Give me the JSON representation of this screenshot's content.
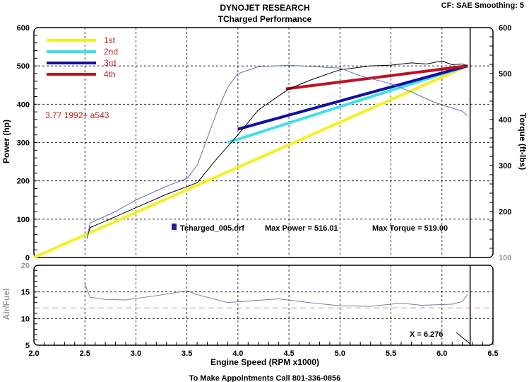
{
  "chart_data": {
    "type": "line",
    "title": "DYNOJET RESEARCH",
    "subtitle": "TCharged Performance",
    "settings": "CF: SAE  Smoothing: 5",
    "xlabel": "Engine Speed (RPM x1000)",
    "ylabel_left": "Power (hp)",
    "ylabel_right": "Torque (ft-lbs)",
    "ylabel_lower": "Air/Fuel",
    "xlim": [
      2.0,
      6.5
    ],
    "x_ticks": [
      "2.0",
      "2.5",
      "3.0",
      "3.5",
      "4.0",
      "4.5",
      "5.0",
      "5.5",
      "6.0",
      "6.5"
    ],
    "power_ylim": [
      0,
      600
    ],
    "power_ticks": [
      "0",
      "100",
      "200",
      "300",
      "400",
      "500",
      "600"
    ],
    "torque_ylim": [
      100,
      600
    ],
    "torque_ticks": [
      "100",
      "200",
      "300",
      "400",
      "500",
      "600"
    ],
    "afr_ylim": [
      5,
      20
    ],
    "afr_ticks": [
      "5",
      "10",
      "15",
      "20"
    ],
    "afr_target": 12,
    "annotation": "3.77 1992+ a543",
    "run_info": {
      "file": "Tcharged_005.drf",
      "max_power": "Max Power = 516.01",
      "max_torque": "Max Torque = 519.00"
    },
    "cursor": {
      "x": 6.276,
      "label": "X = 6.276"
    },
    "footer": "To Make Appointments Call 801-336-0856",
    "gear_lines": [
      {
        "name": "1st",
        "color": "#f5f020",
        "points": [
          [
            2.0,
            0
          ],
          [
            6.25,
            500
          ]
        ]
      },
      {
        "name": "2nd",
        "color": "#40e0e8",
        "points": [
          [
            3.9,
            300
          ],
          [
            6.25,
            500
          ]
        ]
      },
      {
        "name": "3rd",
        "color": "#1010a0",
        "points": [
          [
            4.0,
            335
          ],
          [
            6.25,
            500
          ]
        ]
      },
      {
        "name": "4th",
        "color": "#c01020",
        "points": [
          [
            4.47,
            440
          ],
          [
            6.25,
            500
          ]
        ]
      }
    ],
    "series": [
      {
        "name": "Power (hp)",
        "color": "#000000",
        "axis": "power",
        "points": [
          [
            2.52,
            50
          ],
          [
            2.55,
            78
          ],
          [
            2.7,
            95
          ],
          [
            3.0,
            130
          ],
          [
            3.3,
            165
          ],
          [
            3.5,
            185
          ],
          [
            3.6,
            195
          ],
          [
            3.8,
            260
          ],
          [
            4.0,
            320
          ],
          [
            4.2,
            385
          ],
          [
            4.5,
            440
          ],
          [
            4.7,
            462
          ],
          [
            5.0,
            490
          ],
          [
            5.3,
            500
          ],
          [
            5.5,
            502
          ],
          [
            5.7,
            508
          ],
          [
            5.85,
            505
          ],
          [
            6.0,
            513
          ],
          [
            6.1,
            503
          ],
          [
            6.2,
            505
          ],
          [
            6.25,
            500
          ]
        ]
      },
      {
        "name": "Torque (ft-lbs)",
        "color": "#6070c0",
        "axis": "torque",
        "points": [
          [
            2.52,
            140
          ],
          [
            2.55,
            175
          ],
          [
            2.8,
            200
          ],
          [
            3.0,
            225
          ],
          [
            3.3,
            255
          ],
          [
            3.5,
            272
          ],
          [
            3.6,
            300
          ],
          [
            3.8,
            420
          ],
          [
            3.9,
            470
          ],
          [
            4.0,
            500
          ],
          [
            4.2,
            515
          ],
          [
            4.5,
            518
          ],
          [
            5.0,
            512
          ],
          [
            5.2,
            495
          ],
          [
            5.5,
            478
          ],
          [
            5.7,
            460
          ],
          [
            5.9,
            440
          ],
          [
            6.0,
            432
          ],
          [
            6.2,
            418
          ],
          [
            6.25,
            408
          ]
        ]
      },
      {
        "name": "Air/Fuel",
        "color": "#7080b0",
        "axis": "afr",
        "points": [
          [
            2.5,
            16.5
          ],
          [
            2.55,
            14.0
          ],
          [
            2.7,
            13.6
          ],
          [
            2.9,
            13.5
          ],
          [
            3.2,
            14.3
          ],
          [
            3.5,
            15.2
          ],
          [
            3.6,
            14.5
          ],
          [
            3.9,
            13.0
          ],
          [
            4.1,
            13.3
          ],
          [
            4.4,
            13.7
          ],
          [
            4.7,
            13.0
          ],
          [
            5.0,
            12.4
          ],
          [
            5.3,
            12.3
          ],
          [
            5.6,
            12.9
          ],
          [
            5.8,
            12.5
          ],
          [
            6.1,
            12.7
          ],
          [
            6.2,
            13.2
          ],
          [
            6.25,
            14.5
          ]
        ]
      }
    ]
  }
}
